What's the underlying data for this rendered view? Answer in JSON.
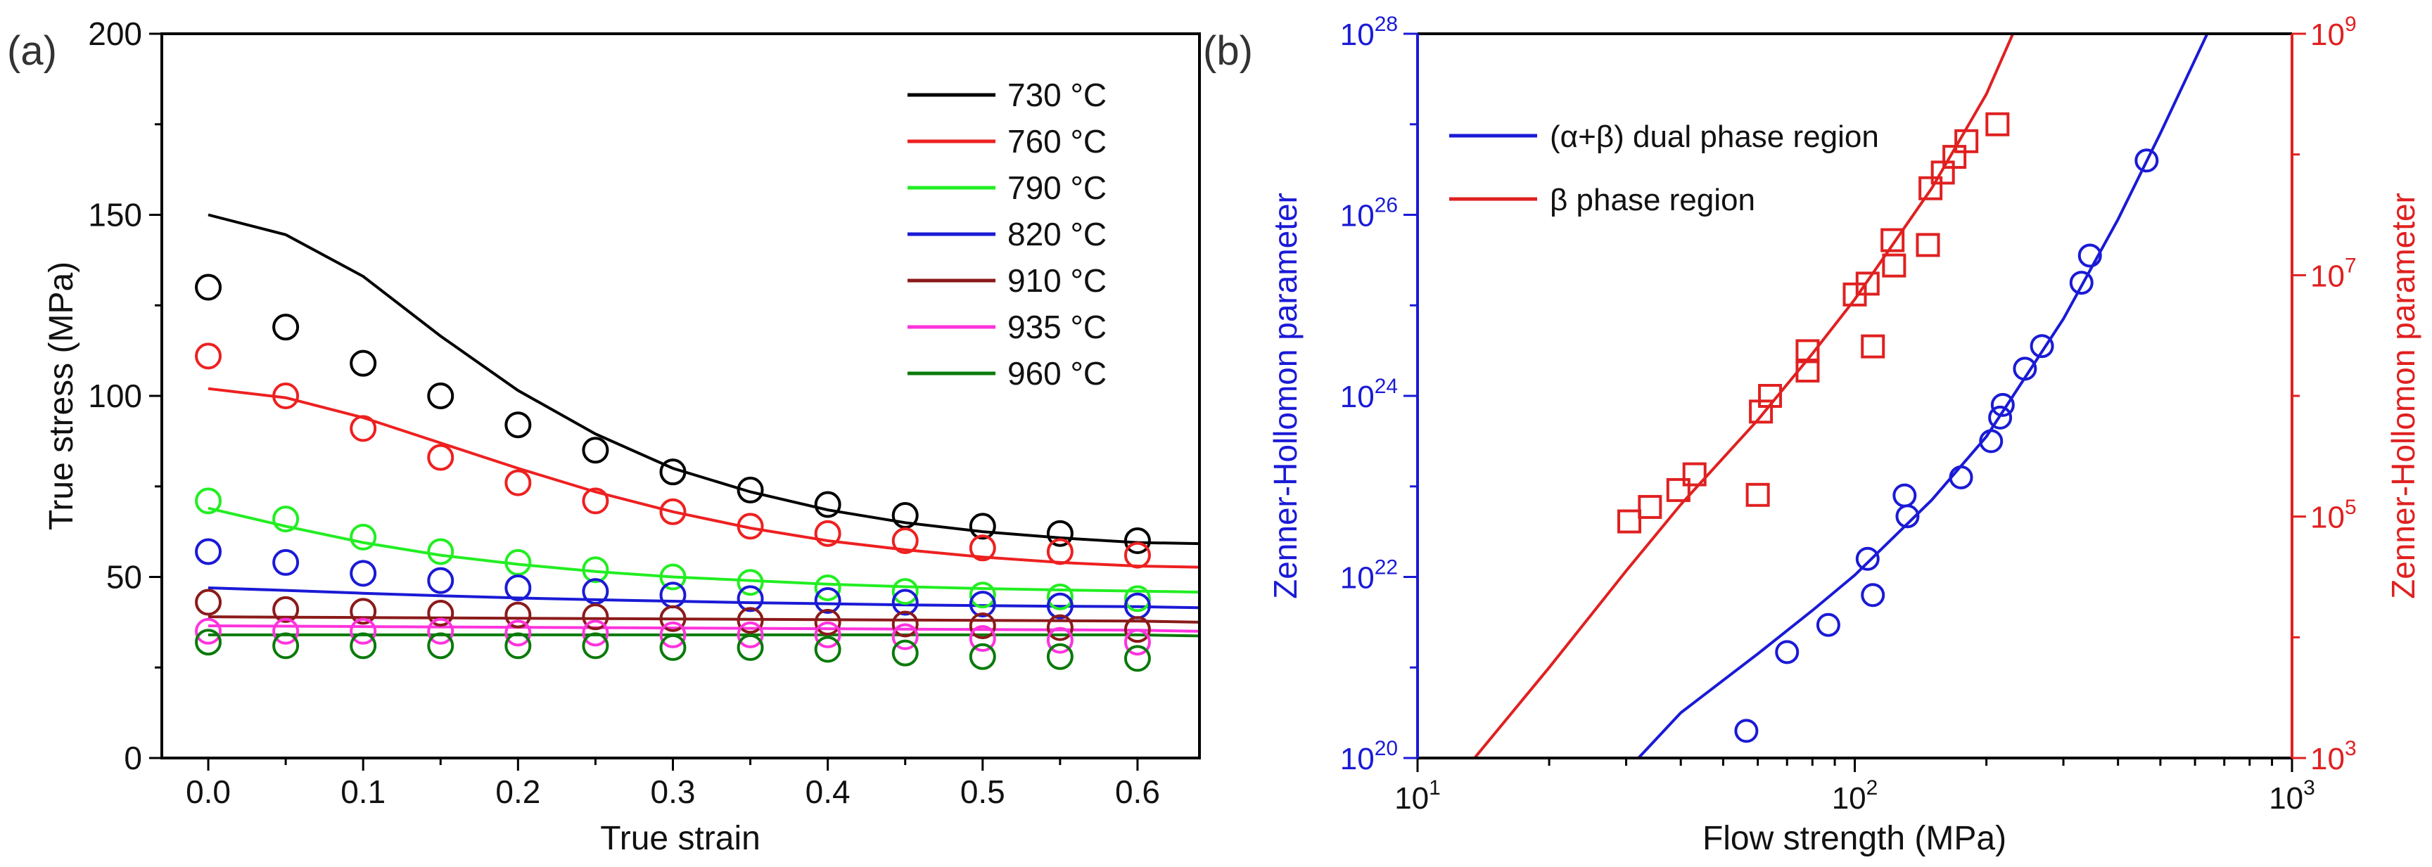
{
  "chart_data": [
    {
      "panel_label": "(a)",
      "type": "scatter",
      "xlabel": "True strain",
      "ylabel": "True stress (MPa)",
      "xlim": [
        -0.03,
        0.64
      ],
      "ylim": [
        0,
        200
      ],
      "xticks": [
        0.0,
        0.1,
        0.2,
        0.3,
        0.4,
        0.5,
        0.6
      ],
      "xtick_labels": [
        "0.0",
        "0.1",
        "0.2",
        "0.3",
        "0.4",
        "0.5",
        "0.6"
      ],
      "yticks": [
        0,
        50,
        100,
        150,
        200
      ],
      "ytick_labels": [
        "0",
        "50",
        "100",
        "150",
        "200"
      ],
      "legend_position": "top-right",
      "x": [
        0.0,
        0.05,
        0.1,
        0.15,
        0.2,
        0.25,
        0.3,
        0.35,
        0.4,
        0.45,
        0.5,
        0.55,
        0.6
      ],
      "series": [
        {
          "name": "730 °C",
          "color": "#000000",
          "values": [
            130,
            119,
            109,
            100,
            92,
            85,
            79,
            74,
            70,
            67,
            64,
            62,
            60
          ],
          "fit": [
            150,
            144.5,
            133,
            116.5,
            101.5,
            89.5,
            80,
            73.5,
            68.5,
            65,
            62.5,
            60.8,
            59.5
          ]
        },
        {
          "name": "760 °C",
          "color": "#ee2020",
          "values": [
            111,
            100,
            91,
            83,
            76,
            71,
            68,
            64,
            62,
            60,
            58,
            57,
            56
          ],
          "fit": [
            102,
            99.5,
            94,
            87,
            80,
            73.5,
            68,
            63.5,
            60,
            57.5,
            55.5,
            54,
            53
          ]
        },
        {
          "name": "790 °C",
          "color": "#22ee22",
          "values": [
            71,
            66,
            61,
            57,
            54,
            52,
            50,
            48.5,
            47,
            46,
            45,
            44.5,
            44
          ],
          "fit": [
            69,
            64,
            59.5,
            56,
            53.5,
            51.5,
            50,
            49,
            48,
            47.3,
            46.8,
            46.4,
            46.1
          ]
        },
        {
          "name": "820 °C",
          "color": "#1a1ad6",
          "values": [
            57,
            54,
            51,
            49,
            47,
            46,
            45,
            44,
            43.5,
            43,
            42.5,
            42,
            42
          ],
          "fit": [
            47,
            46.3,
            45.5,
            44.8,
            44.2,
            43.7,
            43.3,
            42.9,
            42.6,
            42.3,
            42.1,
            41.9,
            41.8
          ]
        },
        {
          "name": "910 °C",
          "color": "#8b1a1a",
          "values": [
            43,
            41,
            40.5,
            40,
            39.5,
            39,
            38.5,
            38,
            37.5,
            37,
            36.5,
            36,
            35.5
          ],
          "fit": [
            39,
            38.9,
            38.8,
            38.7,
            38.6,
            38.5,
            38.4,
            38.3,
            38.2,
            38.1,
            38,
            37.9,
            37.8
          ]
        },
        {
          "name": "935 °C",
          "color": "#ff33dd",
          "values": [
            35,
            35,
            35,
            35,
            34.5,
            34.5,
            34,
            34,
            34,
            33.5,
            33,
            32.5,
            32
          ],
          "fit": [
            36.5,
            36.4,
            36.3,
            36.2,
            36.1,
            36,
            35.9,
            35.8,
            35.7,
            35.6,
            35.5,
            35.4,
            35.3
          ]
        },
        {
          "name": "960 °C",
          "color": "#0a7a0a",
          "values": [
            32,
            31,
            31,
            31,
            31,
            31,
            30.5,
            30.5,
            30,
            29,
            28,
            28,
            27.5
          ],
          "fit": [
            34,
            34,
            34,
            34,
            34,
            34,
            34,
            34,
            34,
            34,
            34,
            34,
            34
          ]
        }
      ]
    },
    {
      "panel_label": "(b)",
      "type": "scatter",
      "xlabel": "Flow strength (MPa)",
      "ylabel_left": "Zenner-Hollomon parameter",
      "ylabel_right": "Zenner-Hollomon parameter",
      "xscale": "log",
      "xlim": [
        10,
        1000
      ],
      "xticks": [
        10,
        100,
        1000
      ],
      "xtick_labels": [
        {
          "base": "10",
          "exp": "1"
        },
        {
          "base": "10",
          "exp": "2"
        },
        {
          "base": "10",
          "exp": "3"
        }
      ],
      "ylim_left": [
        1e+20,
        1e+28
      ],
      "yticks_left": [
        20,
        22,
        24,
        26,
        28
      ],
      "ytick_labels_left": [
        {
          "base": "10",
          "exp": "20"
        },
        {
          "base": "10",
          "exp": "22"
        },
        {
          "base": "10",
          "exp": "24"
        },
        {
          "base": "10",
          "exp": "26"
        },
        {
          "base": "10",
          "exp": "28"
        }
      ],
      "ylim_right": [
        1000.0,
        1000000000.0
      ],
      "yticks_right": [
        3,
        5,
        7,
        9
      ],
      "ytick_labels_right": [
        {
          "base": "10",
          "exp": "3"
        },
        {
          "base": "10",
          "exp": "5"
        },
        {
          "base": "10",
          "exp": "7"
        },
        {
          "base": "10",
          "exp": "9"
        }
      ],
      "legend_position": "top-left",
      "axis_colors": {
        "left": "#1a1ad6",
        "right": "#e02020",
        "bottom": "#000000"
      },
      "series": [
        {
          "name": "(α+β) dual phase region",
          "color": "#1a1ad6",
          "marker": "circle",
          "axis": "left",
          "points": [
            [
              56.5,
              20.3
            ],
            [
              70,
              21.17
            ],
            [
              87,
              21.47
            ],
            [
              107,
              22.2
            ],
            [
              110,
              21.8
            ],
            [
              130,
              22.9
            ],
            [
              132,
              22.67
            ],
            [
              175,
              23.1
            ],
            [
              205,
              23.5
            ],
            [
              215,
              23.76
            ],
            [
              218,
              23.9
            ],
            [
              245,
              24.3
            ],
            [
              268,
              24.55
            ],
            [
              330,
              25.25
            ],
            [
              345,
              25.55
            ],
            [
              465,
              26.6
            ]
          ],
          "fit": [
            [
              32,
              20
            ],
            [
              40,
              20.5
            ],
            [
              60,
              21.15
            ],
            [
              80,
              21.63
            ],
            [
              100,
              22.02
            ],
            [
              150,
              22.85
            ],
            [
              200,
              23.55
            ],
            [
              300,
              24.85
            ],
            [
              400,
              25.95
            ],
            [
              500,
              26.9
            ],
            [
              640,
              28
            ]
          ]
        },
        {
          "name": "β phase region",
          "color": "#e02020",
          "marker": "square",
          "axis": "right",
          "points": [
            [
              30.5,
              4.96
            ],
            [
              34,
              5.08
            ],
            [
              39.5,
              5.22
            ],
            [
              43,
              5.35
            ],
            [
              60,
              5.18
            ],
            [
              61,
              5.87
            ],
            [
              64,
              6.0
            ],
            [
              78,
              6.21
            ],
            [
              78,
              6.37
            ],
            [
              100,
              6.84
            ],
            [
              107,
              6.93
            ],
            [
              110,
              6.41
            ],
            [
              122,
              7.29
            ],
            [
              123,
              7.08
            ],
            [
              147,
              7.25
            ],
            [
              149,
              7.72
            ],
            [
              159,
              7.85
            ],
            [
              169,
              7.98
            ],
            [
              180,
              8.11
            ],
            [
              212,
              8.25
            ]
          ],
          "fit": [
            [
              13.5,
              3.0
            ],
            [
              20,
              3.75
            ],
            [
              30,
              4.55
            ],
            [
              40,
              5.1
            ],
            [
              60,
              5.8
            ],
            [
              80,
              6.35
            ],
            [
              100,
              6.8
            ],
            [
              150,
              7.72
            ],
            [
              200,
              8.5
            ],
            [
              230,
              9.0
            ]
          ]
        }
      ]
    }
  ]
}
